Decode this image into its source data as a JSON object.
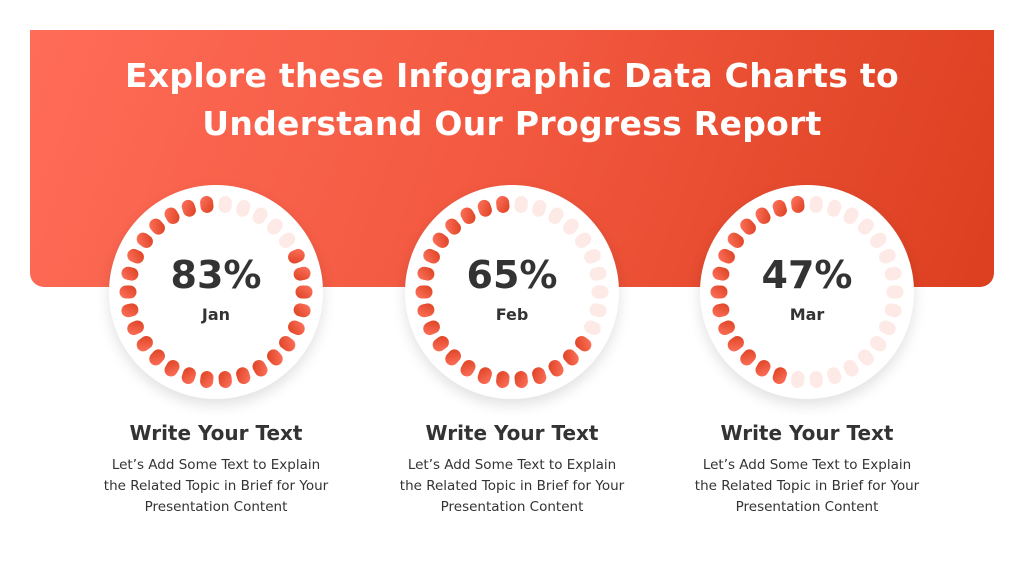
{
  "title_line1": "Explore these Infographic Data Charts to",
  "title_line2": "Understand Our Progress Report",
  "colors": {
    "accent": "#f2583f",
    "accent_dark": "#dc3f1f",
    "empty_dot": "#fde9e5",
    "text": "#333333"
  },
  "chart_data": {
    "type": "radial-progress",
    "categories": [
      "Jan",
      "Feb",
      "Mar"
    ],
    "values": [
      83,
      65,
      47
    ],
    "labels": [
      "83%",
      "65%",
      "47%"
    ],
    "ylim": [
      0,
      100
    ]
  },
  "cards": [
    {
      "heading": "Write Your Text",
      "line1": "Let’s Add Some Text to Explain",
      "line2": "the Related Topic in Brief for Your",
      "line3": "Presentation Content"
    },
    {
      "heading": "Write Your Text",
      "line1": "Let’s Add Some Text to Explain",
      "line2": "the Related Topic in Brief for Your",
      "line3": "Presentation Content"
    },
    {
      "heading": "Write Your Text",
      "line1": "Let’s Add Some Text to Explain",
      "line2": "the Related Topic in Brief for Your",
      "line3": "Presentation Content"
    }
  ]
}
